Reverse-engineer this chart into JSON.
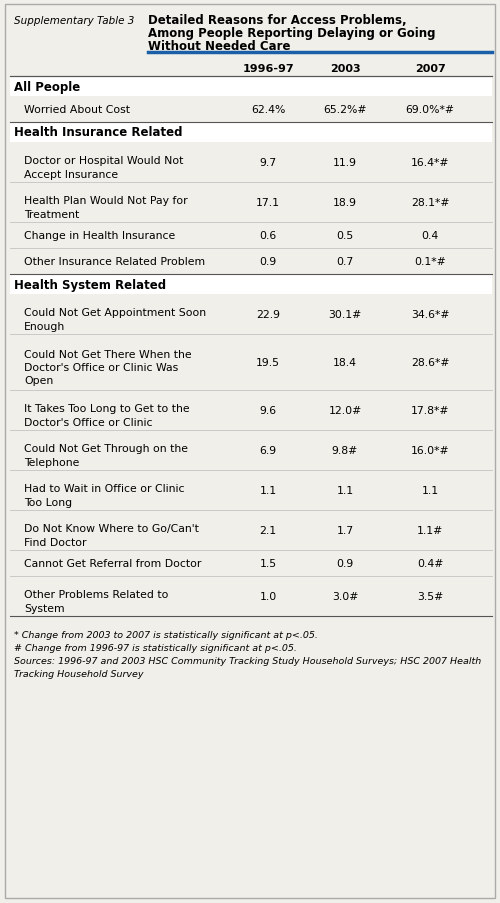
{
  "title_left": "Supplementary Table 3",
  "title_right_line1": "Detailed Reasons for Access Problems,",
  "title_right_line2": "Among People Reporting Delaying or Going",
  "title_right_line3": "Without Needed Care",
  "col_headers": [
    "1996-97",
    "2003",
    "2007"
  ],
  "rows": [
    {
      "type": "section",
      "label": "All People",
      "values": [
        "",
        "",
        ""
      ]
    },
    {
      "type": "data",
      "label": "Worried About Cost",
      "values": [
        "62.4%",
        "65.2%#",
        "69.0%*#"
      ]
    },
    {
      "type": "section",
      "label": "Health Insurance Related",
      "values": [
        "",
        "",
        ""
      ]
    },
    {
      "type": "data",
      "label": "Doctor or Hospital Would Not\nAccept Insurance",
      "values": [
        "9.7",
        "11.9",
        "16.4*#"
      ]
    },
    {
      "type": "data",
      "label": "Health Plan Would Not Pay for\nTreatment",
      "values": [
        "17.1",
        "18.9",
        "28.1*#"
      ]
    },
    {
      "type": "data",
      "label": "Change in Health Insurance",
      "values": [
        "0.6",
        "0.5",
        "0.4"
      ]
    },
    {
      "type": "data",
      "label": "Other Insurance Related Problem",
      "values": [
        "0.9",
        "0.7",
        "0.1*#"
      ]
    },
    {
      "type": "section",
      "label": "Health System Related",
      "values": [
        "",
        "",
        ""
      ]
    },
    {
      "type": "data",
      "label": "Could Not Get Appointment Soon\nEnough",
      "values": [
        "22.9",
        "30.1#",
        "34.6*#"
      ]
    },
    {
      "type": "data",
      "label": "Could Not Get There When the\nDoctor's Office or Clinic Was\nOpen",
      "values": [
        "19.5",
        "18.4",
        "28.6*#"
      ]
    },
    {
      "type": "data",
      "label": "It Takes Too Long to Get to the\nDoctor's Office or Clinic",
      "values": [
        "9.6",
        "12.0#",
        "17.8*#"
      ]
    },
    {
      "type": "data",
      "label": "Could Not Get Through on the\nTelephone",
      "values": [
        "6.9",
        "9.8#",
        "16.0*#"
      ]
    },
    {
      "type": "data",
      "label": "Had to Wait in Office or Clinic\nToo Long",
      "values": [
        "1.1",
        "1.1",
        "1.1"
      ]
    },
    {
      "type": "data",
      "label": "Do Not Know Where to Go/Can't\nFind Doctor",
      "values": [
        "2.1",
        "1.7",
        "1.1#"
      ]
    },
    {
      "type": "data",
      "label": "Cannot Get Referral from Doctor",
      "values": [
        "1.5",
        "0.9",
        "0.4#"
      ]
    },
    {
      "type": "data",
      "label": "Other Problems Related to\nSystem",
      "values": [
        "1.0",
        "3.0#",
        "3.5#"
      ]
    }
  ],
  "footnotes": [
    "* Change from 2003 to 2007 is statistically significant at p<.05.",
    "# Change from 1996-97 is statistically significant at p<.05.",
    "Sources: 1996-97 and 2003 HSC Community Tracking Study Household Surveys; HSC 2007 Health",
    "Tracking Household Survey"
  ],
  "bg_color": "#f0efe9",
  "header_blue": "#1a5fa8",
  "line_color_dark": "#555555",
  "line_color_light": "#bbbbbb"
}
